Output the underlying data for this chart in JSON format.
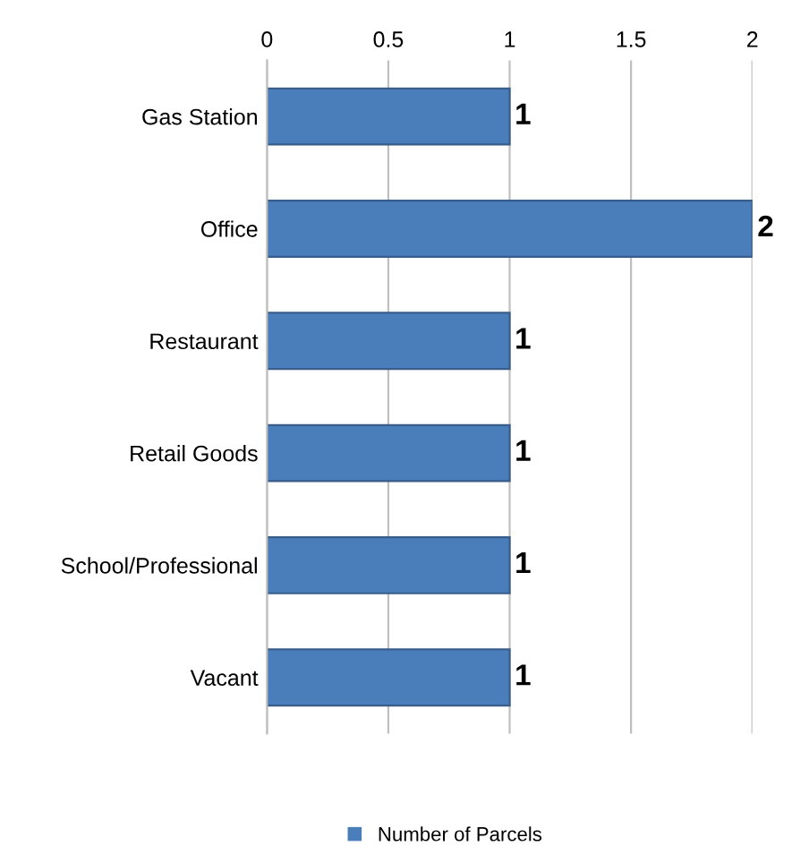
{
  "chart_data": {
    "type": "bar",
    "orientation": "horizontal",
    "categories": [
      "Gas Station",
      "Office",
      "Restaurant",
      "Retail Goods",
      "School/Professional",
      "Vacant"
    ],
    "series": [
      {
        "name": "Number of Parcels",
        "color": "#4a7ebb",
        "values": [
          1,
          2,
          1,
          1,
          1,
          1
        ]
      }
    ],
    "xlim": [
      0,
      2
    ],
    "xticks": [
      0,
      0.5,
      1,
      1.5,
      2
    ],
    "grid": "x",
    "legend": "bottom",
    "data_labels": true
  }
}
